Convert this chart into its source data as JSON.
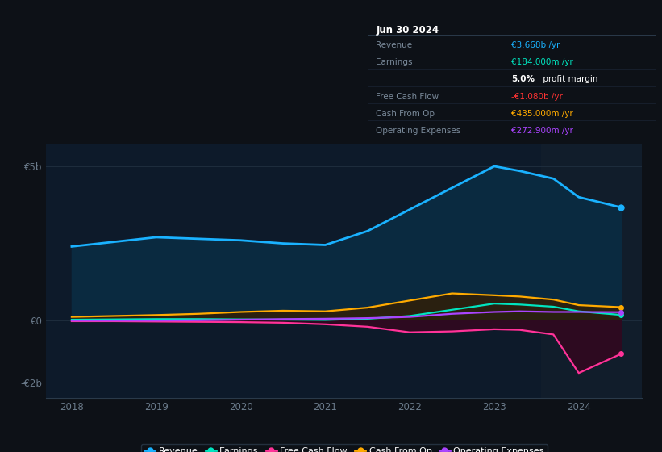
{
  "bg_color": "#0d1117",
  "plot_bg_color": "#0d1a2a",
  "years": [
    2018,
    2018.5,
    2019,
    2019.5,
    2020,
    2020.5,
    2021,
    2021.5,
    2022,
    2022.5,
    2023,
    2023.3,
    2023.7,
    2024,
    2024.5
  ],
  "revenue": [
    2.4,
    2.55,
    2.7,
    2.65,
    2.6,
    2.5,
    2.45,
    2.9,
    3.6,
    4.3,
    5.0,
    4.85,
    4.6,
    4.0,
    3.668
  ],
  "earnings": [
    0.03,
    0.04,
    0.05,
    0.05,
    0.04,
    0.03,
    0.02,
    0.06,
    0.15,
    0.35,
    0.55,
    0.52,
    0.45,
    0.3,
    0.184
  ],
  "free_cash_flow": [
    -0.02,
    -0.02,
    -0.03,
    -0.04,
    -0.05,
    -0.07,
    -0.12,
    -0.2,
    -0.38,
    -0.35,
    -0.28,
    -0.3,
    -0.45,
    -1.7,
    -1.08
  ],
  "cash_from_op": [
    0.12,
    0.15,
    0.18,
    0.22,
    0.28,
    0.32,
    0.3,
    0.42,
    0.65,
    0.88,
    0.82,
    0.78,
    0.68,
    0.5,
    0.435
  ],
  "operating_expenses": [
    0.0,
    0.0,
    0.0,
    0.01,
    0.03,
    0.05,
    0.06,
    0.08,
    0.12,
    0.22,
    0.28,
    0.3,
    0.28,
    0.28,
    0.2729
  ],
  "revenue_color": "#1ab2ff",
  "earnings_color": "#00e5c0",
  "fcf_color": "#ff3399",
  "cashop_color": "#ffaa00",
  "opex_color": "#aa44ff",
  "revenue_fill_color": "#0a2a40",
  "earnings_fill_color": "#0a3530",
  "fcf_fill_color": "#2d0a20",
  "cashop_fill_color": "#2a2010",
  "ylim": [
    -2.5,
    5.7
  ],
  "xlim_left": 2017.7,
  "xlim_right": 2024.75,
  "xticks": [
    2018,
    2019,
    2020,
    2021,
    2022,
    2023,
    2024
  ],
  "ytick_positions": [
    -2,
    0,
    5
  ],
  "ytick_labels": [
    "-€2b",
    "€0",
    "€5b"
  ],
  "highlight_x_start": 2023.55,
  "highlight_x_end": 2024.75,
  "highlight_color": "#111d2b",
  "grid_color": "#1e2d3d",
  "spine_color": "#2a3a4a",
  "tick_color": "#6a7a8a",
  "info_box_title": "Jun 30 2024",
  "info_rows": [
    {
      "label": "Revenue",
      "value": "€3.668b /yr",
      "color": "#1ab2ff"
    },
    {
      "label": "Earnings",
      "value": "€184.000m /yr",
      "color": "#00e5c0"
    },
    {
      "label": "",
      "value": "5.0% profit margin",
      "color": "#ffffff",
      "bold_part": "5.0%"
    },
    {
      "label": "Free Cash Flow",
      "value": "-€1.080b /yr",
      "color": "#ff3333"
    },
    {
      "label": "Cash From Op",
      "value": "€435.000m /yr",
      "color": "#ffaa00"
    },
    {
      "label": "Operating Expenses",
      "value": "€272.900m /yr",
      "color": "#aa44ff"
    }
  ],
  "legend_entries": [
    {
      "label": "Revenue",
      "color": "#1ab2ff"
    },
    {
      "label": "Earnings",
      "color": "#00e5c0"
    },
    {
      "label": "Free Cash Flow",
      "color": "#ff3399"
    },
    {
      "label": "Cash From Op",
      "color": "#ffaa00"
    },
    {
      "label": "Operating Expenses",
      "color": "#aa44ff"
    }
  ]
}
